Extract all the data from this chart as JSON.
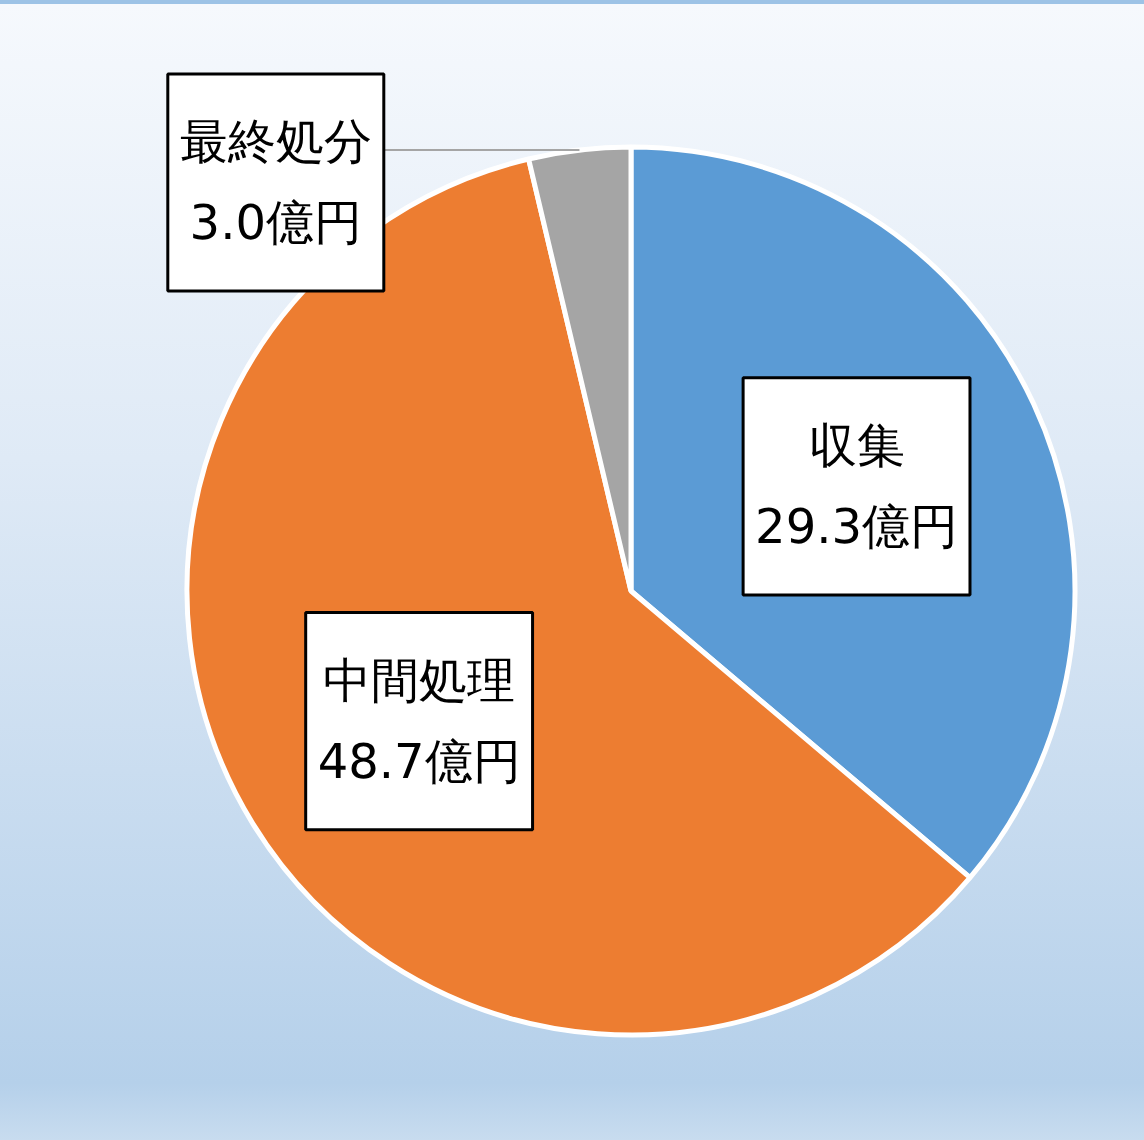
{
  "chart_data": {
    "type": "pie",
    "categories": [
      "収集",
      "中間処理",
      "最終処分"
    ],
    "values": [
      29.3,
      48.7,
      3.0
    ],
    "colors": [
      "#5b9bd5",
      "#ed7d31",
      "#a5a5a5"
    ],
    "value_labels": [
      "29.3億円",
      "48.7億円",
      "3.0億円"
    ]
  }
}
